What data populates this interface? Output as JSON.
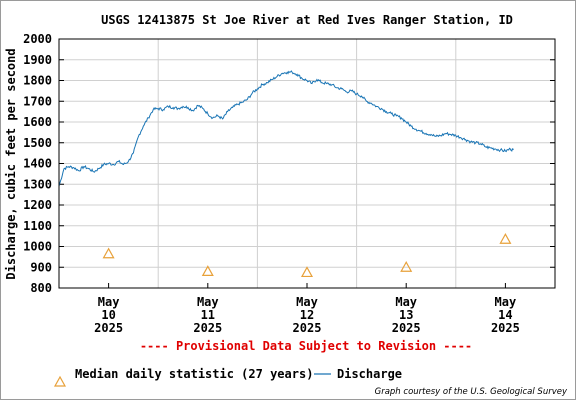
{
  "chart_data": {
    "type": "line",
    "title": "USGS 12413875 St Joe River at Red Ives Ranger Station, ID",
    "ylabel": "Discharge, cubic feet per second",
    "xlabel": "",
    "ylim": [
      800,
      2000
    ],
    "y_ticks": [
      "800",
      "900",
      "1000",
      "1100",
      "1200",
      "1300",
      "1400",
      "1500",
      "1600",
      "1700",
      "1800",
      "1900",
      "2000"
    ],
    "grid": true,
    "x_range_days": [
      9.5,
      14.5
    ],
    "x_ticks": [
      {
        "day": 10,
        "month": "May",
        "date": "10",
        "year": "2025"
      },
      {
        "day": 11,
        "month": "May",
        "date": "11",
        "year": "2025"
      },
      {
        "day": 12,
        "month": "May",
        "date": "12",
        "year": "2025"
      },
      {
        "day": 13,
        "month": "May",
        "date": "13",
        "year": "2025"
      },
      {
        "day": 14,
        "month": "May",
        "date": "14",
        "year": "2025"
      }
    ],
    "provisional_note": "---- Provisional Data Subject to Revision ----",
    "series": [
      {
        "name": "Discharge",
        "color": "#1a75b5",
        "x": [
          9.5,
          9.55,
          9.6,
          9.65,
          9.7,
          9.75,
          9.8,
          9.85,
          9.9,
          9.95,
          10.0,
          10.05,
          10.1,
          10.15,
          10.2,
          10.25,
          10.3,
          10.35,
          10.4,
          10.45,
          10.5,
          10.55,
          10.6,
          10.65,
          10.7,
          10.75,
          10.8,
          10.85,
          10.9,
          10.95,
          11.0,
          11.05,
          11.1,
          11.15,
          11.2,
          11.25,
          11.3,
          11.35,
          11.4,
          11.45,
          11.5,
          11.55,
          11.6,
          11.65,
          11.7,
          11.75,
          11.8,
          11.85,
          11.9,
          11.95,
          12.0,
          12.05,
          12.1,
          12.15,
          12.2,
          12.25,
          12.3,
          12.35,
          12.4,
          12.45,
          12.5,
          12.55,
          12.6,
          12.65,
          12.7,
          12.75,
          12.8,
          12.85,
          12.9,
          12.95,
          13.0,
          13.05,
          13.1,
          13.15,
          13.2,
          13.25,
          13.3,
          13.35,
          13.4,
          13.45,
          13.5,
          13.55,
          13.6,
          13.65,
          13.7,
          13.75,
          13.8,
          13.85,
          13.9,
          13.95,
          14.0,
          14.05,
          14.08
        ],
        "values": [
          1290,
          1375,
          1385,
          1380,
          1365,
          1385,
          1375,
          1360,
          1375,
          1395,
          1400,
          1395,
          1410,
          1395,
          1410,
          1450,
          1530,
          1580,
          1620,
          1660,
          1665,
          1660,
          1675,
          1670,
          1665,
          1675,
          1670,
          1655,
          1680,
          1665,
          1640,
          1620,
          1630,
          1615,
          1650,
          1670,
          1685,
          1695,
          1710,
          1740,
          1760,
          1780,
          1790,
          1805,
          1820,
          1835,
          1840,
          1840,
          1830,
          1810,
          1800,
          1785,
          1805,
          1790,
          1785,
          1780,
          1765,
          1760,
          1745,
          1750,
          1735,
          1725,
          1700,
          1690,
          1675,
          1665,
          1650,
          1640,
          1630,
          1620,
          1600,
          1580,
          1565,
          1555,
          1545,
          1540,
          1530,
          1535,
          1545,
          1540,
          1535,
          1525,
          1515,
          1505,
          1500,
          1495,
          1480,
          1475,
          1470,
          1465,
          1460,
          1470,
          1465
        ]
      },
      {
        "name": "Median daily statistic (27 years)",
        "color": "#e8a13a",
        "marker": "triangle",
        "x": [
          10.0,
          11.0,
          12.0,
          13.0,
          14.0
        ],
        "values": [
          965,
          880,
          875,
          900,
          1035
        ]
      }
    ],
    "legend": {
      "placement": "bottom",
      "median_label": "Median daily statistic (27 years)",
      "discharge_label": "Discharge"
    },
    "credit": "Graph courtesy of the U.S. Geological Survey"
  }
}
